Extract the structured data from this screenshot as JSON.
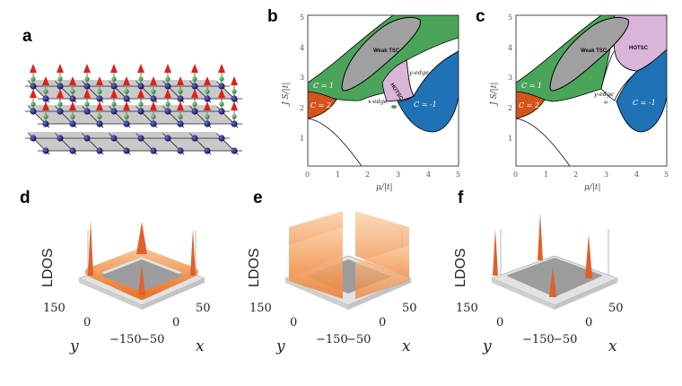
{
  "panel_labels": [
    "a",
    "b",
    "c",
    "d",
    "e",
    "f"
  ],
  "phase_diagrams": {
    "x_axis_label": "μ/|t|",
    "y_axis_label": "J S/|t|",
    "x_ticks": [
      "0",
      "1",
      "2",
      "3",
      "4",
      "5"
    ],
    "y_ticks": [
      "1",
      "2",
      "3",
      "4",
      "5"
    ],
    "b_regions": [
      "Weak TSC",
      "C = 1",
      "C = 2",
      "HOTSC",
      "y-edge",
      "x-edge",
      "C = -1"
    ],
    "c_regions": [
      "Weak TSC",
      "HOTSC",
      "C = 1",
      "C = 2",
      "y-edge",
      "C = -1"
    ]
  },
  "ldos_plots": {
    "z_label": "LDOS",
    "y_label": "y",
    "x_label": "x",
    "y_ticks": [
      "150",
      "0",
      "−150"
    ],
    "x_ticks": [
      "−50",
      "0",
      "50"
    ]
  },
  "colors": {
    "green": "#4aa55b",
    "orange": "#d4541a",
    "grey": "#a0a0a0",
    "pink": "#dbb4d9",
    "blue": "#1f72b5",
    "ldos_orange": "#f39a4f",
    "lattice_atom": "#1c1c6e",
    "spin_red": "#e0201a"
  },
  "chart_data": [
    {
      "type": "phase-diagram",
      "panel": "b",
      "title": "",
      "xlabel": "μ/|t|",
      "ylabel": "J S/|t|",
      "xlim": [
        0,
        5
      ],
      "ylim": [
        0,
        5
      ],
      "regions": [
        {
          "label": "Weak TSC",
          "color": "gray"
        },
        {
          "label": "C = 1",
          "color": "green"
        },
        {
          "label": "C = 2",
          "color": "orange"
        },
        {
          "label": "HOTSC",
          "color": "pink"
        },
        {
          "label": "x-edge",
          "color": "green"
        },
        {
          "label": "y-edge",
          "color": "white"
        },
        {
          "label": "C = -1",
          "color": "blue"
        }
      ]
    },
    {
      "type": "phase-diagram",
      "panel": "c",
      "title": "",
      "xlabel": "μ/|t|",
      "ylabel": "J S/|t|",
      "xlim": [
        0,
        5
      ],
      "ylim": [
        0,
        5
      ],
      "regions": [
        {
          "label": "Weak TSC",
          "color": "gray"
        },
        {
          "label": "HOTSC",
          "color": "pink"
        },
        {
          "label": "C = 1",
          "color": "green"
        },
        {
          "label": "C = 2",
          "color": "orange"
        },
        {
          "label": "y-edge",
          "color": "white"
        },
        {
          "label": "C = -1",
          "color": "blue"
        }
      ]
    }
  ]
}
